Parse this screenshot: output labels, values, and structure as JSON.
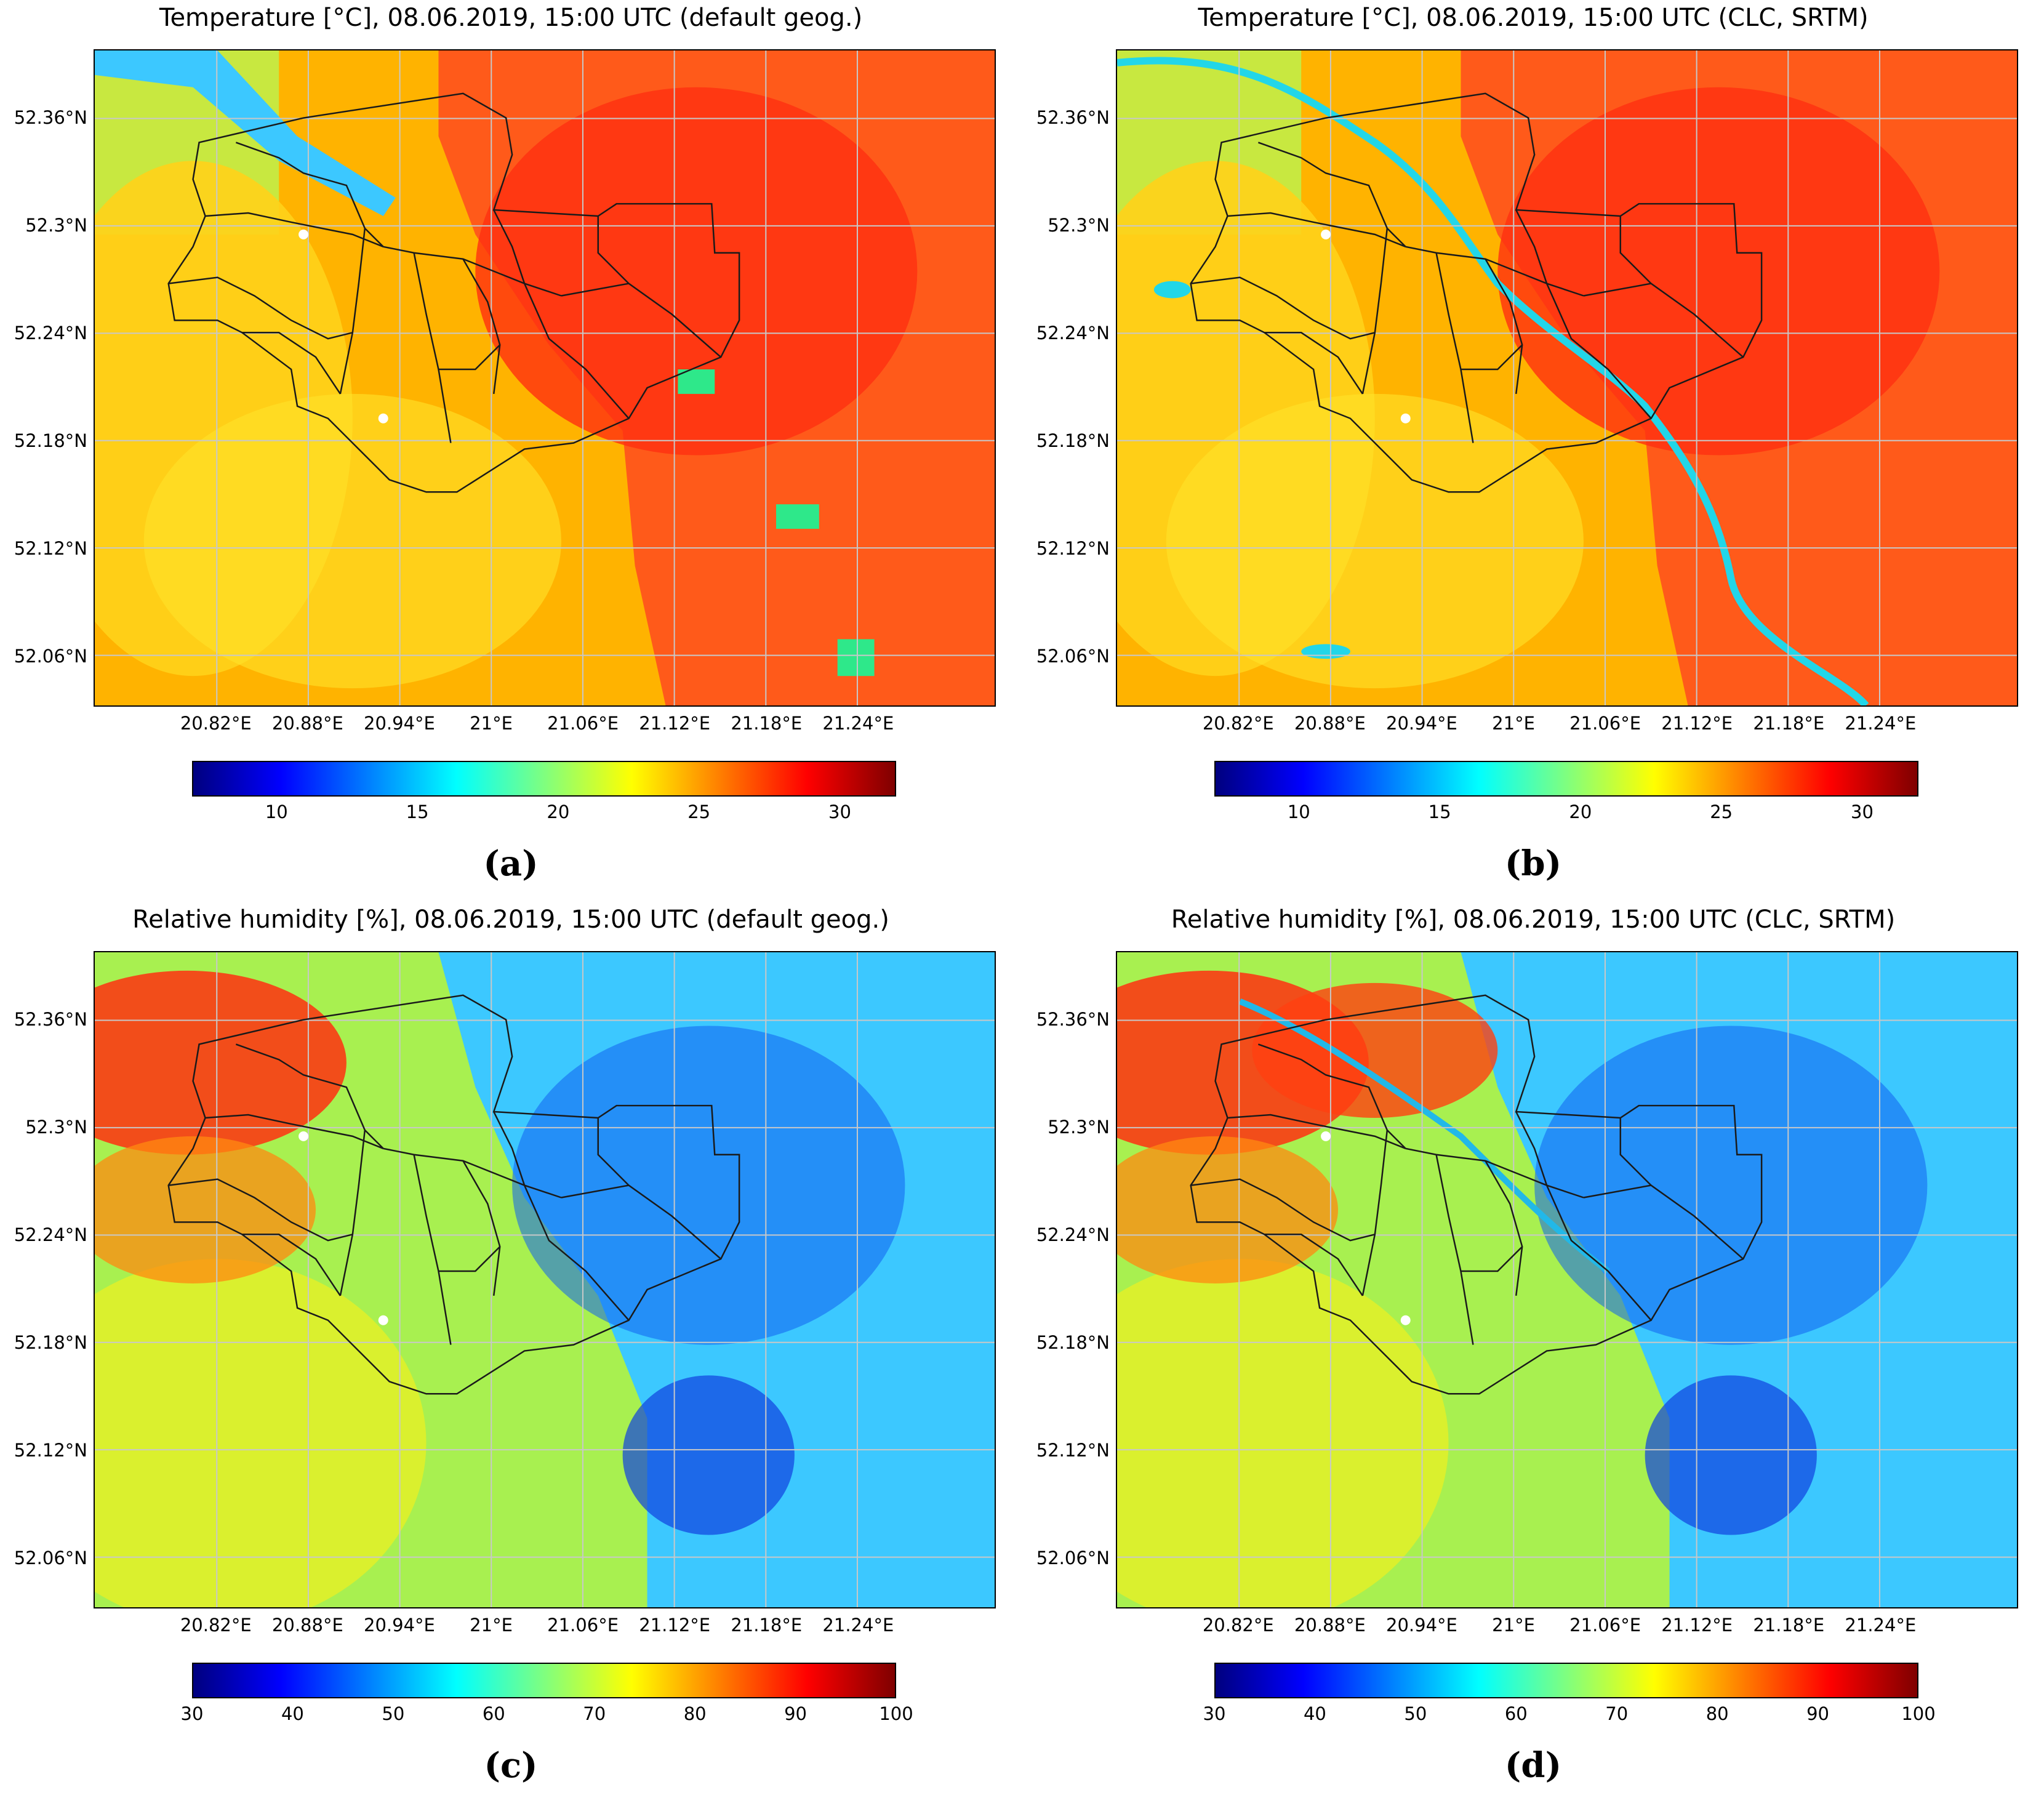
{
  "panels": [
    {
      "title": "Temperature [°C], 08.06.2019, 15:00 UTC (default geog.)",
      "letter": "(a)",
      "variable": "temperature",
      "colorbar": {
        "min": 7,
        "max": 32,
        "ticks": [
          "10",
          "15",
          "20",
          "25",
          "30"
        ]
      }
    },
    {
      "title": "Temperature [°C], 08.06.2019, 15:00 UTC (CLC, SRTM)",
      "letter": "(b)",
      "variable": "temperature",
      "colorbar": {
        "min": 7,
        "max": 32,
        "ticks": [
          "10",
          "15",
          "20",
          "25",
          "30"
        ]
      }
    },
    {
      "title": "Relative humidity [%], 08.06.2019, 15:00 UTC (default geog.)",
      "letter": "(c)",
      "variable": "relative-humidity",
      "colorbar": {
        "min": 30,
        "max": 100,
        "ticks": [
          "30",
          "40",
          "50",
          "60",
          "70",
          "80",
          "90",
          "100"
        ]
      }
    },
    {
      "title": "Relative humidity [%], 08.06.2019, 15:00 UTC (CLC, SRTM)",
      "letter": "(d)",
      "variable": "relative-humidity",
      "colorbar": {
        "min": 30,
        "max": 100,
        "ticks": [
          "30",
          "40",
          "50",
          "60",
          "70",
          "80",
          "90",
          "100"
        ]
      }
    }
  ],
  "axes": {
    "lat_ticks": [
      "52.36°N",
      "52.3°N",
      "52.24°N",
      "52.18°N",
      "52.12°N",
      "52.06°N"
    ],
    "lon_ticks": [
      "20.82°E",
      "20.88°E",
      "20.94°E",
      "21°E",
      "21.06°E",
      "21.12°E",
      "21.18°E",
      "21.24°E"
    ],
    "lat_values": [
      52.36,
      52.3,
      52.24,
      52.18,
      52.12,
      52.06
    ],
    "lon_values": [
      20.82,
      20.88,
      20.94,
      21.0,
      21.06,
      21.12,
      21.18,
      21.24
    ],
    "lat_range": [
      52.032,
      52.398
    ],
    "lon_range": [
      20.74,
      21.33
    ],
    "gridlines": true
  },
  "colormap": "jet",
  "colors": {
    "boundary": "#1a1a1a",
    "station_marker": "#ffffff",
    "gridline": "#c8c8c8"
  }
}
